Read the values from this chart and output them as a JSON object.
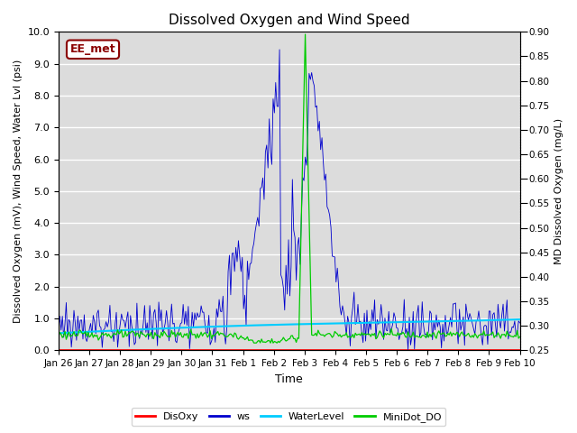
{
  "title": "Dissolved Oxygen and Wind Speed",
  "xlabel": "Time",
  "ylabel_left": "Dissolved Oxygen (mV), Wind Speed, Water Lvl (psi)",
  "ylabel_right": "MD Dissolved Oxygen (mg/L)",
  "ylim_left": [
    0.0,
    10.0
  ],
  "ylim_right": [
    0.25,
    0.9
  ],
  "yticks_left": [
    0.0,
    1.0,
    2.0,
    3.0,
    4.0,
    5.0,
    6.0,
    7.0,
    8.0,
    9.0,
    10.0
  ],
  "yticks_right": [
    0.25,
    0.3,
    0.35,
    0.4,
    0.45,
    0.5,
    0.55,
    0.6,
    0.65,
    0.7,
    0.75,
    0.8,
    0.85,
    0.9
  ],
  "xtick_labels": [
    "Jan 26",
    "Jan 27",
    "Jan 28",
    "Jan 29",
    "Jan 30",
    "Jan 31",
    "Feb 1",
    "Feb 2",
    "Feb 3",
    "Feb 4",
    "Feb 5",
    "Feb 6",
    "Feb 7",
    "Feb 8",
    "Feb 9",
    "Feb 10"
  ],
  "annotation_text": "EE_met",
  "annotation_color": "#8B0000",
  "colors": {
    "DisOxy": "#FF0000",
    "ws": "#0000CD",
    "WaterLevel": "#00CCFF",
    "MiniDot_DO": "#00CC00"
  },
  "bg_color": "#DCDCDC",
  "grid_color": "#FFFFFF"
}
